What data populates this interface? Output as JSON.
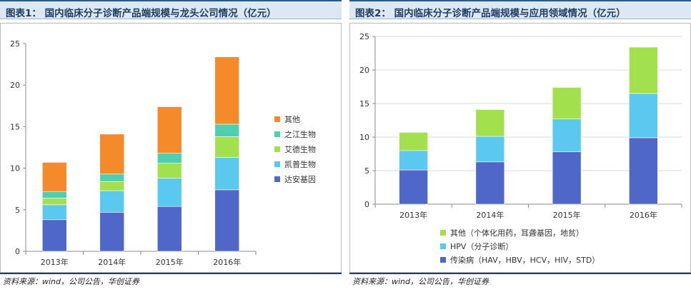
{
  "left": {
    "title": "图表1： 国内临床分子诊断产品端规模与龙头公司情况（亿元）",
    "source": "资料来源：wind，公司公告，华创证券"
  },
  "right": {
    "title": "图表2： 国内临床分子诊断产品端规模与应用领域情况（亿元）",
    "source": "资料来源：wind，公司公告，华创证券"
  },
  "chart_data": [
    {
      "type": "bar",
      "stacked": true,
      "title": "图表1： 国内临床分子诊断产品端规模与龙头公司情况（亿元）",
      "categories": [
        "2013年",
        "2014年",
        "2015年",
        "2016年"
      ],
      "ylim": [
        0,
        25
      ],
      "yticks": [
        0,
        5,
        10,
        15,
        20,
        25
      ],
      "grid": false,
      "legend_position": "right",
      "series": [
        {
          "name": "达安基因",
          "color": "#4f67c8",
          "values": [
            3.8,
            4.7,
            5.4,
            7.4
          ]
        },
        {
          "name": "凯普生物",
          "color": "#5bc8f0",
          "values": [
            1.8,
            2.6,
            3.4,
            3.9
          ]
        },
        {
          "name": "艾德生物",
          "color": "#a2e04e",
          "values": [
            0.8,
            1.1,
            1.8,
            2.5
          ]
        },
        {
          "name": "之江生物",
          "color": "#4fcfb0",
          "values": [
            0.8,
            0.9,
            1.2,
            1.5
          ]
        },
        {
          "name": "其他",
          "color": "#f58a2a",
          "values": [
            3.5,
            4.8,
            5.6,
            8.1
          ]
        }
      ]
    },
    {
      "type": "bar",
      "stacked": true,
      "title": "图表2： 国内临床分子诊断产品端规模与应用领域情况（亿元）",
      "categories": [
        "2013年",
        "2014年",
        "2015年",
        "2016年"
      ],
      "ylim": [
        0,
        25
      ],
      "yticks": [
        0,
        5,
        10,
        15,
        20,
        25
      ],
      "grid": true,
      "legend_position": "bottom",
      "series": [
        {
          "name": "传染病（HAV，HBV，HCV，HIV，STD）",
          "color": "#4f67c8",
          "values": [
            5.1,
            6.3,
            7.8,
            9.9
          ]
        },
        {
          "name": "HPV（分子诊断）",
          "color": "#5bc8f0",
          "values": [
            2.9,
            3.8,
            4.9,
            6.6
          ]
        },
        {
          "name": "其他（个体化用药，耳聋基因，地贫）",
          "color": "#a2e04e",
          "values": [
            2.7,
            4.0,
            4.7,
            6.9
          ]
        }
      ]
    }
  ]
}
